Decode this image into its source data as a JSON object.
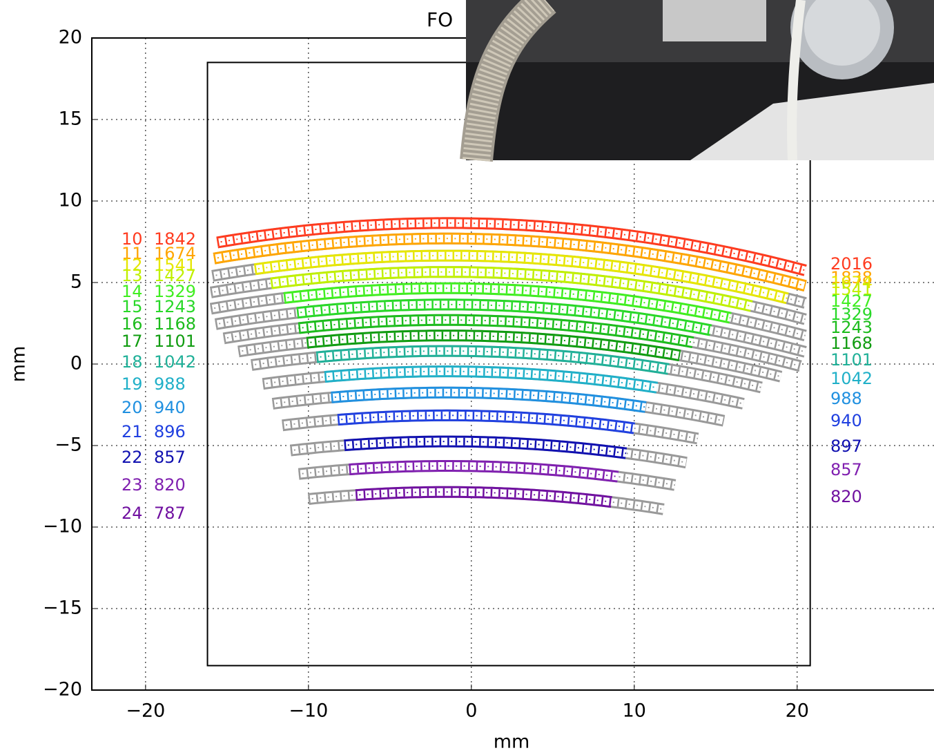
{
  "chart_data": {
    "type": "arc-bands",
    "title": "FO",
    "xlabel": "mm",
    "ylabel": "mm",
    "xlim": [
      -23.3,
      28.4
    ],
    "ylim": [
      -20,
      20
    ],
    "xticks": [
      {
        "value": -20,
        "label": "−20"
      },
      {
        "value": -10,
        "label": "−10"
      },
      0,
      10,
      20
    ],
    "yticks": [
      {
        "value": -20,
        "label": "−20"
      },
      {
        "value": -15,
        "label": "−15"
      },
      {
        "value": -10,
        "label": "−10"
      },
      {
        "value": -5,
        "label": "−5"
      },
      0,
      5,
      10,
      15,
      20
    ],
    "grid": true,
    "frame": {
      "x": [
        -16.2,
        20.8
      ],
      "y": [
        -18.5,
        18.5
      ]
    },
    "rows": [
      {
        "id": 10,
        "left": 1842,
        "right": 2016,
        "color": "#ff3b1f",
        "y": 9.0,
        "x": [
          -15.6,
          20.5
        ],
        "gray": [
          -15.6,
          20.5
        ]
      },
      {
        "id": 11,
        "left": 1674,
        "right": 1838,
        "color": "#ffa500",
        "y": 8.05,
        "x": [
          -15.8,
          20.5
        ],
        "gray": [
          -15.8,
          20.5
        ]
      },
      {
        "id": 12,
        "left": 1541,
        "right": 1674,
        "color": "#e6e600",
        "y": 7.0,
        "x": [
          -13.3,
          19.4
        ],
        "gray": [
          -15.9,
          20.5
        ]
      },
      {
        "id": 13,
        "left": 1427,
        "right": 1541,
        "color": "#c0f000",
        "y": 6.0,
        "x": [
          -12.3,
          17.2
        ],
        "gray": [
          -16.0,
          20.5
        ]
      },
      {
        "id": 14,
        "left": 1329,
        "right": 1427,
        "color": "#40ee20",
        "y": 5.0,
        "x": [
          -11.5,
          15.9
        ],
        "gray": [
          -16.0,
          20.5
        ]
      },
      {
        "id": 15,
        "left": 1243,
        "right": 1329,
        "color": "#28d828",
        "y": 4.0,
        "x": [
          -10.7,
          14.7
        ],
        "gray": [
          -15.7,
          20.5
        ]
      },
      {
        "id": 16,
        "left": 1168,
        "right": 1243,
        "color": "#1cbc1c",
        "y": 3.05,
        "x": [
          -10.6,
          13.6
        ],
        "gray": [
          -15.2,
          20.2
        ]
      },
      {
        "id": 17,
        "left": 1101,
        "right": 1168,
        "color": "#109c10",
        "y": 2.1,
        "x": [
          -10.1,
          12.8
        ],
        "gray": [
          -14.3,
          19.0
        ]
      },
      {
        "id": 18,
        "left": 1042,
        "right": 1101,
        "color": "#20b098",
        "y": 1.15,
        "x": [
          -9.5,
          12.1
        ],
        "gray": [
          -13.5,
          17.8
        ]
      },
      {
        "id": 19,
        "left": 988,
        "right": 1042,
        "color": "#20b0c8",
        "y": -0.1,
        "x": [
          -9.0,
          11.4
        ],
        "gray": [
          -12.8,
          16.7
        ]
      },
      {
        "id": 20,
        "left": 940,
        "right": 988,
        "color": "#2090e0",
        "y": -1.4,
        "x": [
          -8.6,
          10.7
        ],
        "gray": [
          -12.2,
          15.5
        ]
      },
      {
        "id": 21,
        "left": 896,
        "right": 940,
        "color": "#2040e0",
        "y": -2.8,
        "x": [
          -8.2,
          10.0
        ],
        "gray": [
          -11.6,
          13.9
        ]
      },
      {
        "id": 22,
        "left": 857,
        "right": 897,
        "color": "#1010b0",
        "y": -4.4,
        "x": [
          -7.8,
          9.5
        ],
        "gray": [
          -11.1,
          13.2
        ]
      },
      {
        "id": 23,
        "left": 820,
        "right": 857,
        "color": "#8020b0",
        "y": -5.9,
        "x": [
          -7.5,
          9.0
        ],
        "gray": [
          -10.6,
          12.5
        ]
      },
      {
        "id": 24,
        "left": 787,
        "right": 820,
        "color": "#7010a0",
        "y": -7.5,
        "x": [
          -7.1,
          8.6
        ],
        "gray": [
          -10.0,
          11.8
        ]
      }
    ]
  }
}
